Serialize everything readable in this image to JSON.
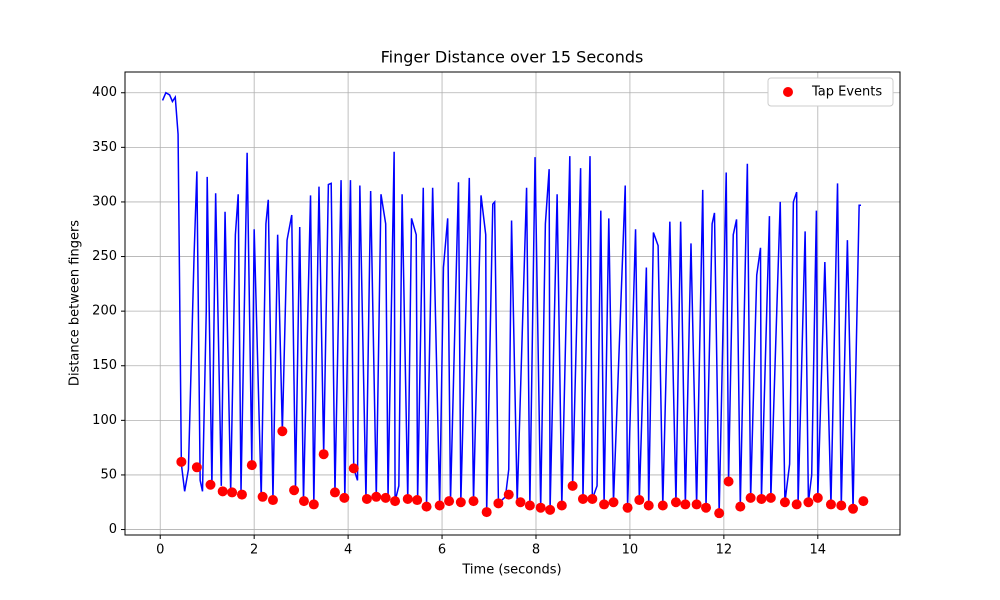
{
  "chart_data": {
    "type": "line",
    "title": "Finger Distance over 15 Seconds",
    "x_label": "Time (seconds)",
    "y_label": "Distance between fingers",
    "xlim": [
      -0.75,
      15.75
    ],
    "ylim": [
      -5,
      419
    ],
    "xticks": [
      0,
      2,
      4,
      6,
      8,
      10,
      12,
      14
    ],
    "yticks": [
      0,
      50,
      100,
      150,
      200,
      250,
      300,
      350,
      400
    ],
    "grid": true,
    "legend": "upper-right",
    "series": [
      {
        "type": "line",
        "color": "#0000ff",
        "x": [
          0.05,
          0.12,
          0.2,
          0.26,
          0.32,
          0.38,
          0.45,
          0.52,
          0.6,
          0.72,
          0.78,
          0.85,
          0.9,
          0.98,
          1.0,
          1.1,
          1.18,
          1.3,
          1.38,
          1.5,
          1.6,
          1.66,
          1.72,
          1.85,
          1.95,
          2.0,
          2.15,
          2.25,
          2.3,
          2.4,
          2.5,
          2.6,
          2.7,
          2.8,
          2.88,
          2.97,
          3.05,
          3.2,
          3.27,
          3.38,
          3.48,
          3.58,
          3.64,
          3.72,
          3.85,
          3.93,
          4.05,
          4.12,
          4.2,
          4.25,
          4.38,
          4.48,
          4.6,
          4.7,
          4.8,
          4.85,
          4.98,
          5.0,
          5.08,
          5.15,
          5.27,
          5.35,
          5.45,
          5.48,
          5.6,
          5.67,
          5.8,
          5.95,
          6.03,
          6.12,
          6.18,
          6.35,
          6.4,
          6.58,
          6.67,
          6.83,
          6.93,
          6.95,
          7.08,
          7.12,
          7.2,
          7.35,
          7.42,
          7.48,
          7.6,
          7.8,
          7.87,
          7.98,
          8.1,
          8.2,
          8.28,
          8.3,
          8.45,
          8.55,
          8.72,
          8.78,
          8.95,
          9.0,
          9.15,
          9.2,
          9.3,
          9.38,
          9.45,
          9.55,
          9.65,
          9.9,
          9.95,
          10.12,
          10.2,
          10.35,
          10.4,
          10.5,
          10.6,
          10.7,
          10.85,
          10.98,
          11.08,
          11.18,
          11.3,
          11.42,
          11.55,
          11.62,
          11.75,
          11.8,
          11.9,
          12.05,
          12.1,
          12.2,
          12.27,
          12.35,
          12.5,
          12.57,
          12.7,
          12.78,
          12.8,
          12.97,
          13.0,
          13.2,
          13.3,
          13.4,
          13.48,
          13.55,
          13.58,
          13.73,
          13.8,
          13.87,
          13.97,
          14.0,
          14.15,
          14.28,
          14.42,
          14.5,
          14.63,
          14.75,
          14.88,
          14.92
        ],
        "values": [
          393,
          400,
          398,
          392,
          396,
          362,
          60,
          35,
          55,
          250,
          328,
          45,
          35,
          200,
          323,
          40,
          308,
          40,
          291,
          35,
          270,
          307,
          35,
          345,
          60,
          275,
          30,
          280,
          302,
          28,
          270,
          90,
          265,
          288,
          36,
          277,
          26,
          306,
          23,
          314,
          69,
          316,
          317,
          34,
          320,
          29,
          320,
          56,
          45,
          315,
          28,
          310,
          30,
          307,
          280,
          29,
          346,
          26,
          40,
          307,
          28,
          285,
          270,
          27,
          313,
          21,
          313,
          22,
          240,
          285,
          26,
          318,
          25,
          322,
          26,
          306,
          270,
          16,
          298,
          300,
          24,
          30,
          55,
          283,
          25,
          313,
          22,
          341,
          20,
          280,
          330,
          18,
          307,
          22,
          342,
          40,
          331,
          28,
          342,
          28,
          40,
          292,
          23,
          285,
          25,
          315,
          20,
          275,
          27,
          240,
          22,
          272,
          260,
          22,
          282,
          25,
          282,
          23,
          262,
          23,
          311,
          20,
          280,
          290,
          15,
          327,
          44,
          270,
          284,
          21,
          335,
          29,
          233,
          258,
          28,
          287,
          29,
          300,
          25,
          60,
          300,
          309,
          23,
          273,
          25,
          50,
          292,
          29,
          245,
          23,
          317,
          22,
          265,
          19,
          297,
          297
        ]
      },
      {
        "type": "scatter",
        "name": "Tap Events",
        "color": "#ff0000",
        "x": [
          0.45,
          0.78,
          1.07,
          1.33,
          1.53,
          1.74,
          1.95,
          2.18,
          2.4,
          2.6,
          2.85,
          3.06,
          3.27,
          3.48,
          3.72,
          3.92,
          4.12,
          4.4,
          4.6,
          4.8,
          5.0,
          5.27,
          5.47,
          5.67,
          5.95,
          6.15,
          6.4,
          6.67,
          6.95,
          7.2,
          7.42,
          7.67,
          7.87,
          8.1,
          8.3,
          8.55,
          8.78,
          9.0,
          9.2,
          9.45,
          9.65,
          9.95,
          10.2,
          10.4,
          10.7,
          10.98,
          11.18,
          11.42,
          11.62,
          11.9,
          12.1,
          12.35,
          12.57,
          12.8,
          13.0,
          13.3,
          13.55,
          13.8,
          14.0,
          14.28,
          14.5,
          14.75,
          14.97
        ],
        "values": [
          62,
          57,
          41,
          35,
          34,
          32,
          59,
          30,
          27,
          90,
          36,
          26,
          23,
          69,
          34,
          29,
          56,
          28,
          30,
          29,
          26,
          28,
          27,
          21,
          22,
          26,
          25,
          26,
          16,
          24,
          32,
          25,
          22,
          20,
          18,
          22,
          40,
          28,
          28,
          23,
          25,
          20,
          27,
          22,
          22,
          25,
          23,
          23,
          20,
          15,
          44,
          21,
          29,
          28,
          29,
          25,
          23,
          25,
          29,
          23,
          22,
          19,
          26
        ]
      }
    ]
  }
}
